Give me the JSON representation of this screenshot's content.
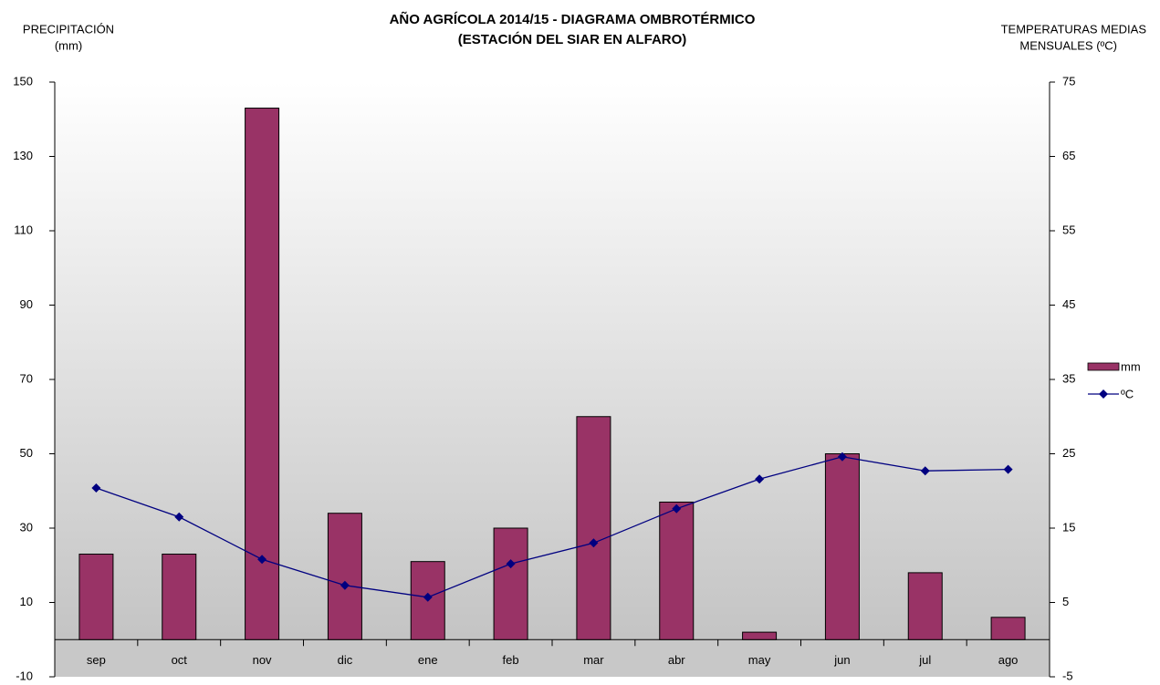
{
  "chart_data": {
    "type": "bar",
    "title": [
      "AÑO AGRÍCOLA 2014/15 - DIAGRAMA OMBROTÉRMICO",
      "(ESTACIÓN DEL SIAR EN  ALFARO)"
    ],
    "ylabel": [
      "PRECIPITACIÓN",
      "(mm)"
    ],
    "y2label": [
      "TEMPERATURAS  MEDIAS",
      "MENSUALES  (ºC)"
    ],
    "categories": [
      "sep",
      "oct",
      "nov",
      "dic",
      "ene",
      "feb",
      "mar",
      "abr",
      "may",
      "jun",
      "jul",
      "ago"
    ],
    "series": [
      {
        "name": "mm",
        "color": "#993366",
        "values": [
          23,
          23,
          143,
          34,
          21,
          30,
          60,
          37,
          2,
          50,
          18,
          6
        ]
      },
      {
        "name": "ºC",
        "color": "#000080",
        "axis": "y2",
        "values": [
          20.4,
          16.5,
          10.8,
          7.3,
          5.7,
          10.2,
          13.0,
          17.6,
          21.6,
          24.6,
          22.7,
          22.9
        ]
      }
    ],
    "ylim": [
      -10,
      150
    ],
    "yticks": [
      -10,
      10,
      30,
      50,
      70,
      90,
      110,
      130,
      150
    ],
    "y2lim": [
      -5,
      75
    ],
    "y2ticks": [
      -5,
      5,
      15,
      25,
      35,
      45,
      55,
      65,
      75
    ],
    "legend": "right"
  }
}
